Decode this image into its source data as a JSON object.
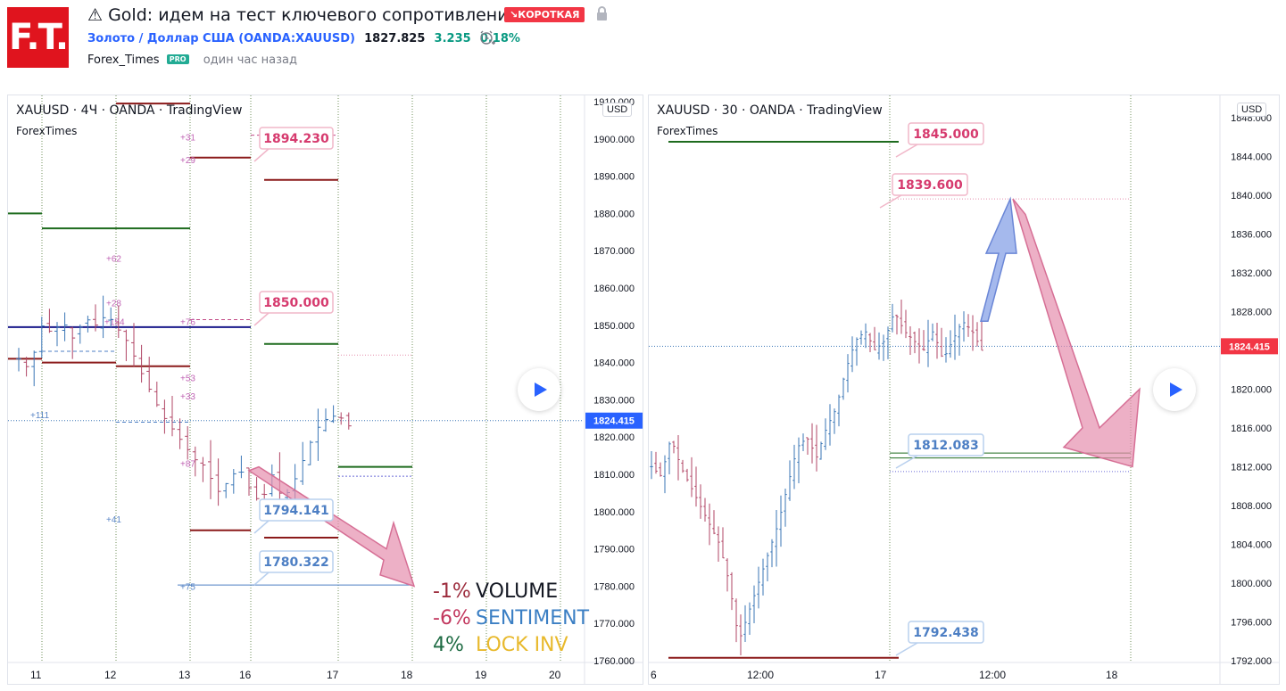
{
  "header": {
    "logo_text": "F.T.",
    "title": "⚠ Gold: идем на тест ключевого сопротивления.",
    "direction_badge": "↘КОРОТКАЯ",
    "symbol_link": "Золото / Доллар США (OANDA:XAUUSD)",
    "price": "1827.825",
    "change": "3.235",
    "change_pct": "0.18%",
    "author": "Forex_Times",
    "author_badge": "PRO",
    "published": "один час назад"
  },
  "colors": {
    "brand_red": "#e0141e",
    "short_badge": "#f23645",
    "change_green": "#089981",
    "link_blue": "#2962ff",
    "resistance_red": "#8b1a1a",
    "support_green": "#1e6b1e",
    "pink_label": "#d63a6e",
    "blue_label": "#4d7fc4",
    "arrow_pink": "#e58fae",
    "arrow_blue": "#8fa8e8"
  },
  "chart_data": [
    {
      "type": "ohlc",
      "header": "XAUUSD · 4Ч · OANDA · TradingView",
      "subheader": "ForexTimes",
      "currency": "USD",
      "current_price": "1824.415",
      "ylim": [
        1760,
        1910
      ],
      "y_ticks": [
        "1910.000",
        "1900.000",
        "1890.000",
        "1880.000",
        "1870.000",
        "1860.000",
        "1850.000",
        "1840.000",
        "1830.000",
        "1820.000",
        "1810.000",
        "1800.000",
        "1790.000",
        "1780.000",
        "1770.000",
        "1760.000"
      ],
      "x_ticks": [
        "11",
        "12",
        "13",
        "16",
        "17",
        "18",
        "19",
        "20"
      ],
      "price_labels": [
        {
          "value": "1894.230",
          "tone": "pink"
        },
        {
          "value": "1850.000",
          "tone": "pink"
        },
        {
          "value": "1794.141",
          "tone": "blue"
        },
        {
          "value": "1780.322",
          "tone": "blue"
        }
      ],
      "level_tags": [
        "+31",
        "+29",
        "+62",
        "+28",
        "+154",
        "+76",
        "+53",
        "+33",
        "+111",
        "+87",
        "+41",
        "+75"
      ],
      "stats": [
        {
          "value": "-1%",
          "label": "VOLUME",
          "value_color": "#9c2b3c",
          "label_color": "#131722"
        },
        {
          "value": "-6%",
          "label": "SENTIMENT",
          "value_color": "#c2375e",
          "label_color": "#3b7fc4"
        },
        {
          "value": "4%",
          "label": "LOCK INV",
          "value_color": "#1e6b43",
          "label_color": "#e8b92c"
        }
      ]
    },
    {
      "type": "ohlc",
      "header": "XAUUSD · 30 · OANDA · TradingView",
      "subheader": "ForexTimes",
      "currency": "USD",
      "current_price": "1824.415",
      "ylim": [
        1792,
        1850
      ],
      "y_ticks": [
        "1848.000",
        "1844.000",
        "1840.000",
        "1836.000",
        "1832.000",
        "1828.000",
        "1824.000",
        "1820.000",
        "1816.000",
        "1812.000",
        "1808.000",
        "1804.000",
        "1800.000",
        "1796.000",
        "1792.000"
      ],
      "x_ticks": [
        "6",
        "12:00",
        "17",
        "12:00",
        "18"
      ],
      "price_labels": [
        {
          "value": "1845.000",
          "tone": "pink"
        },
        {
          "value": "1839.600",
          "tone": "pink"
        },
        {
          "value": "1812.083",
          "tone": "blue"
        },
        {
          "value": "1792.438",
          "tone": "blue"
        }
      ]
    }
  ]
}
